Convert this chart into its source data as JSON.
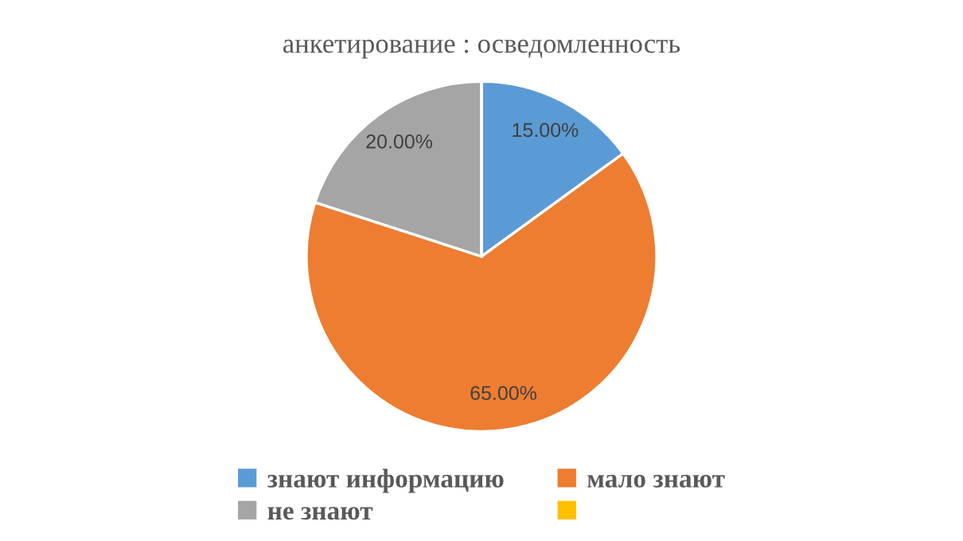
{
  "chart_data": {
    "type": "pie",
    "title": "анкетирование : осведомленность",
    "categories": [
      "знают информацию",
      "мало знают",
      "не знают",
      null
    ],
    "values": [
      15,
      65,
      20,
      0
    ],
    "colors": [
      "#5b9bd5",
      "#ed7d31",
      "#a5a5a5",
      "#ffc000"
    ],
    "value_labels": [
      "15.00%",
      "65.00%",
      "20.00%",
      null
    ],
    "legend": "bottom"
  }
}
